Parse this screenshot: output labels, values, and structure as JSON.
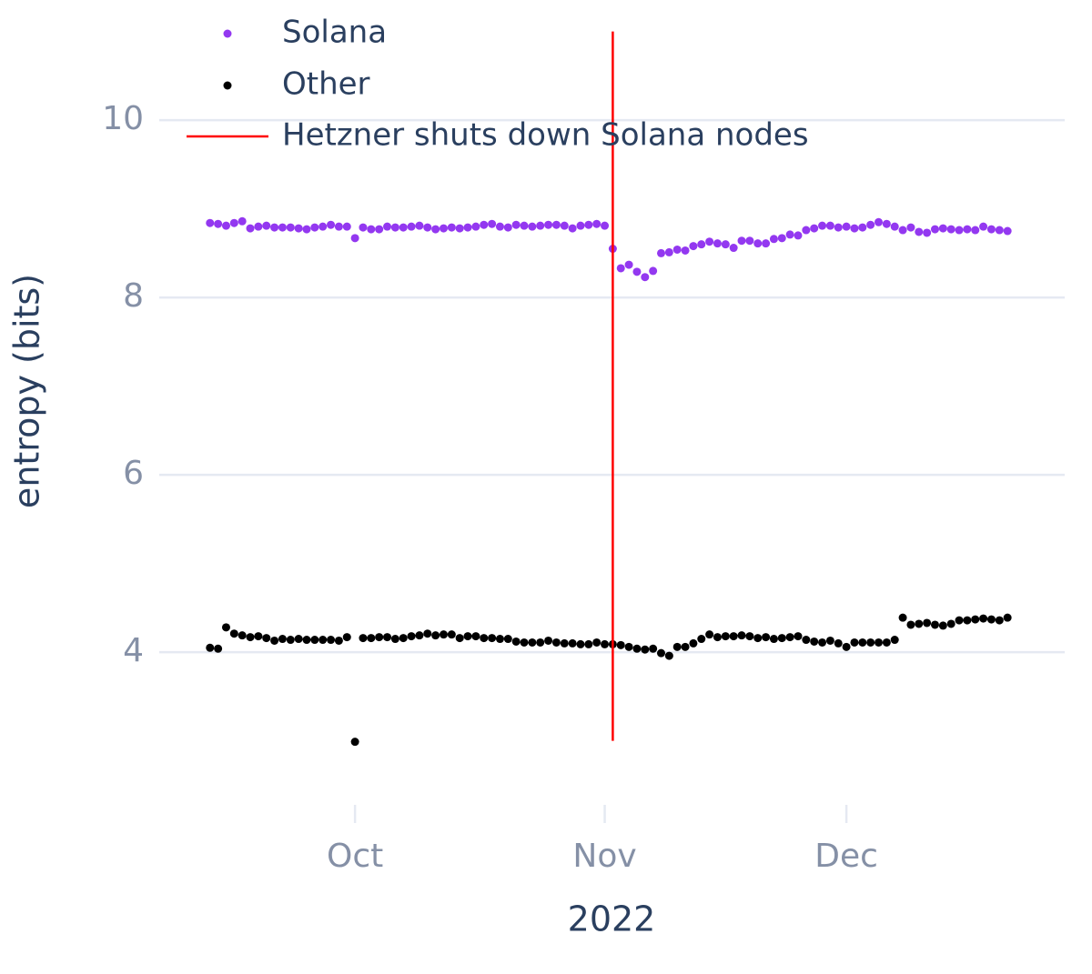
{
  "chart_data": {
    "type": "scatter",
    "x_title": "2022",
    "y_title": "entropy (bits)",
    "xlim": [
      -6.3,
      106.1
    ],
    "ylim": [
      2.33,
      11.15
    ],
    "xticks": [
      {
        "value": 18,
        "label": "Oct"
      },
      {
        "value": 49,
        "label": "Nov"
      },
      {
        "value": 79,
        "label": "Dec"
      }
    ],
    "yticks": [
      4,
      6,
      8,
      10
    ],
    "grid": true,
    "series": [
      {
        "name": "Solana",
        "color": "#9338f0",
        "values": [
          8.84,
          8.83,
          8.81,
          8.84,
          8.86,
          8.78,
          8.8,
          8.81,
          8.79,
          8.79,
          8.79,
          8.78,
          8.77,
          8.79,
          8.8,
          8.82,
          8.8,
          8.8,
          8.67,
          8.79,
          8.77,
          8.77,
          8.8,
          8.79,
          8.79,
          8.8,
          8.81,
          8.79,
          8.77,
          8.78,
          8.79,
          8.78,
          8.79,
          8.8,
          8.82,
          8.83,
          8.8,
          8.79,
          8.82,
          8.81,
          8.8,
          8.81,
          8.82,
          8.82,
          8.81,
          8.78,
          8.81,
          8.82,
          8.83,
          8.81,
          8.55,
          8.33,
          8.37,
          8.29,
          8.23,
          8.3,
          8.5,
          8.51,
          8.54,
          8.53,
          8.58,
          8.6,
          8.63,
          8.61,
          8.6,
          8.56,
          8.64,
          8.64,
          8.61,
          8.61,
          8.66,
          8.67,
          8.71,
          8.7,
          8.76,
          8.78,
          8.81,
          8.81,
          8.79,
          8.8,
          8.78,
          8.79,
          8.82,
          8.85,
          8.83,
          8.8,
          8.76,
          8.79,
          8.74,
          8.73,
          8.77,
          8.78,
          8.77,
          8.76,
          8.77,
          8.76,
          8.8,
          8.77,
          8.76,
          8.75
        ]
      },
      {
        "name": "Other",
        "color": "#000000",
        "values": [
          4.05,
          4.04,
          4.28,
          4.21,
          4.19,
          4.17,
          4.18,
          4.16,
          4.13,
          4.15,
          4.14,
          4.15,
          4.14,
          4.14,
          4.14,
          4.14,
          4.13,
          4.17,
          2.99,
          4.16,
          4.16,
          4.17,
          4.17,
          4.15,
          4.16,
          4.18,
          4.19,
          4.21,
          4.19,
          4.2,
          4.2,
          4.16,
          4.18,
          4.18,
          4.16,
          4.16,
          4.15,
          4.15,
          4.12,
          4.11,
          4.11,
          4.11,
          4.13,
          4.11,
          4.1,
          4.1,
          4.09,
          4.09,
          4.11,
          4.09,
          4.09,
          4.08,
          4.06,
          4.04,
          4.03,
          4.04,
          3.99,
          3.96,
          4.06,
          4.06,
          4.1,
          4.15,
          4.2,
          4.17,
          4.18,
          4.18,
          4.19,
          4.18,
          4.16,
          4.17,
          4.15,
          4.16,
          4.17,
          4.18,
          4.14,
          4.12,
          4.11,
          4.13,
          4.1,
          4.06,
          4.11,
          4.11,
          4.11,
          4.11,
          4.11,
          4.14,
          4.39,
          4.31,
          4.32,
          4.33,
          4.31,
          4.3,
          4.32,
          4.36,
          4.36,
          4.37,
          4.38,
          4.37,
          4.36,
          4.39
        ]
      }
    ],
    "vline": {
      "name": "Hetzner shuts down Solana nodes",
      "color": "#ff0000",
      "x": 50,
      "y": [
        3,
        11
      ]
    }
  }
}
